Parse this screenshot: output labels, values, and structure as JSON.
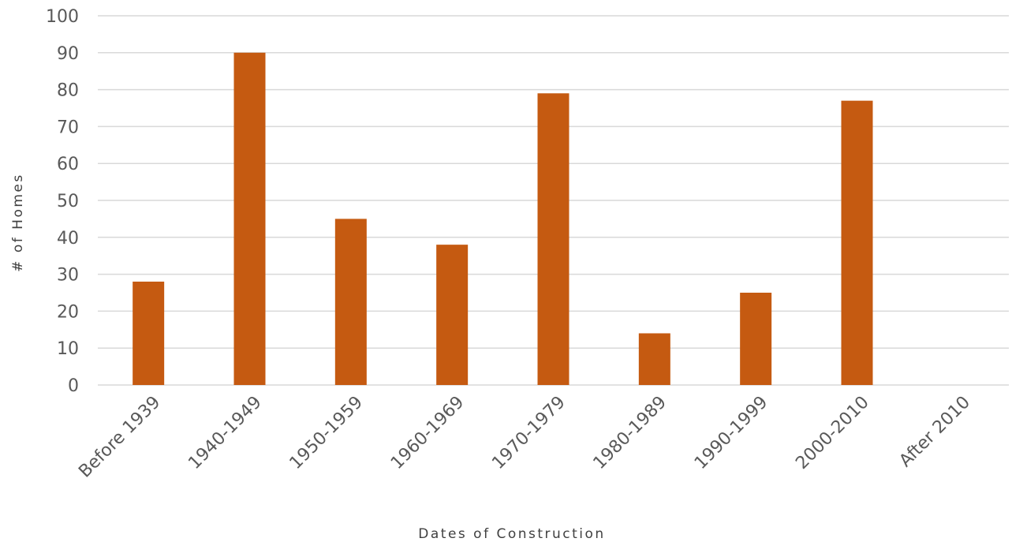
{
  "chart_data": {
    "type": "bar",
    "categories": [
      "Before 1939",
      "1940-1949",
      "1950-1959",
      "1960-1969",
      "1970-1979",
      "1980-1989",
      "1990-1999",
      "2000-2010",
      "After 2010"
    ],
    "values": [
      28,
      90,
      45,
      38,
      79,
      14,
      25,
      77,
      0
    ],
    "xlabel": "Dates of Construction",
    "ylabel": "# of Homes",
    "ylim": [
      0,
      100
    ],
    "yticks": [
      0,
      10,
      20,
      30,
      40,
      50,
      60,
      70,
      80,
      90,
      100
    ],
    "bar_color": "#c55a11",
    "grid": true,
    "legend": "none"
  }
}
